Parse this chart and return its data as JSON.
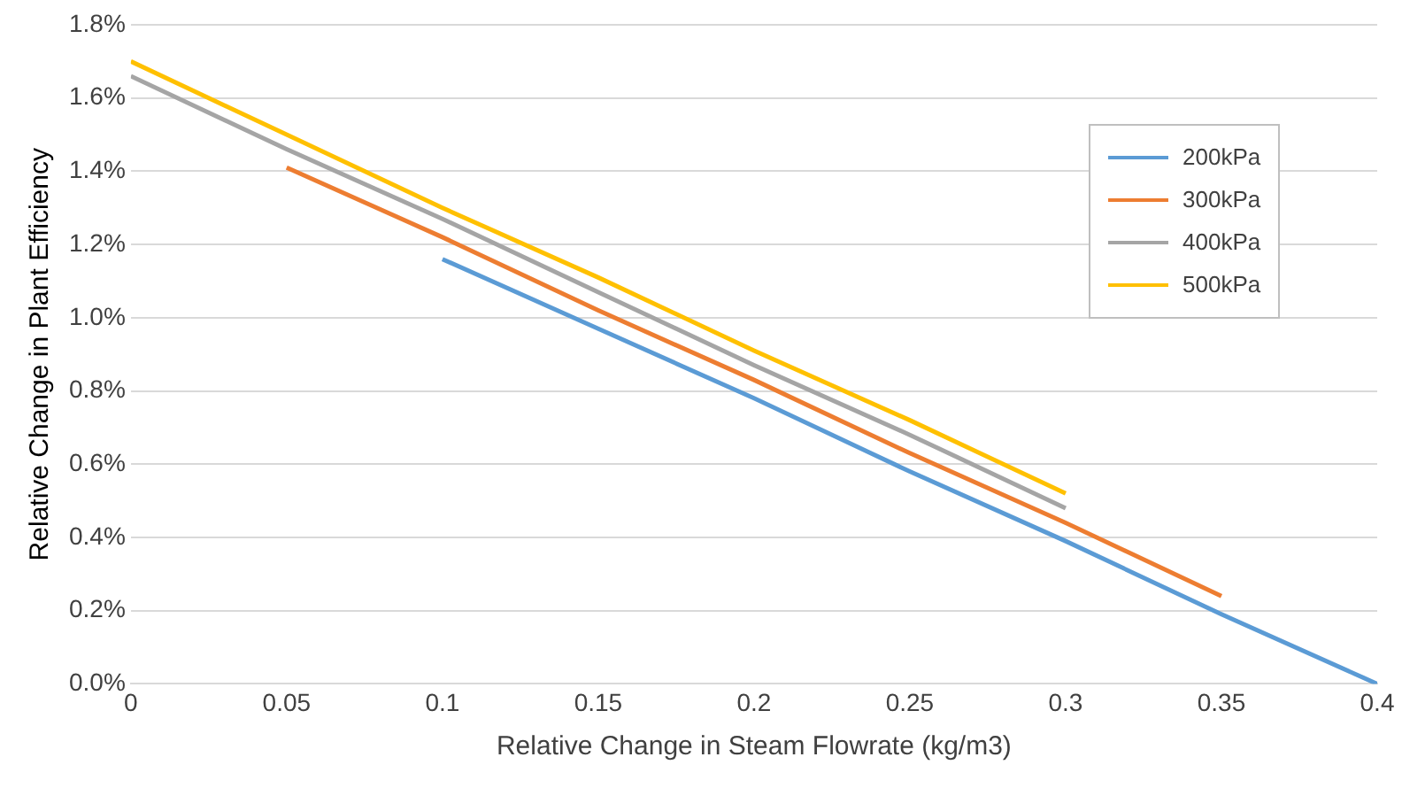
{
  "chart_data": {
    "type": "line",
    "xlabel": "Relative Change in Steam Flowrate (kg/m3)",
    "ylabel": "Relative Change in Plant Efficiency",
    "xlim": [
      0,
      0.4
    ],
    "xticks": [
      0,
      0.05,
      0.1,
      0.15,
      0.2,
      0.25,
      0.3,
      0.35,
      0.4
    ],
    "ylim": [
      0,
      1.8
    ],
    "yticks": [
      {
        "value": 0,
        "label": "0.0%"
      },
      {
        "value": 0.2,
        "label": "0.2%"
      },
      {
        "value": 0.4,
        "label": "0.4%"
      },
      {
        "value": 0.6,
        "label": "0.6%"
      },
      {
        "value": 0.8,
        "label": "0.8%"
      },
      {
        "value": 1.0,
        "label": "1.0%"
      },
      {
        "value": 1.2,
        "label": "1.2%"
      },
      {
        "value": 1.4,
        "label": "1.4%"
      },
      {
        "value": 1.6,
        "label": "1.6%"
      },
      {
        "value": 1.8,
        "label": "1.8%"
      }
    ],
    "grid": "y",
    "legend": "right",
    "marker": "none",
    "line_style": "solid",
    "series": [
      {
        "name": "200kPa",
        "color": "#5b9bd5",
        "x": [
          0.1,
          0.15,
          0.2,
          0.25,
          0.3,
          0.35,
          0.4
        ],
        "values": [
          1.16,
          0.97,
          0.78,
          0.58,
          0.39,
          0.19,
          0
        ]
      },
      {
        "name": "300kPa",
        "color": "#ed7d31",
        "x": [
          0.05,
          0.1,
          0.15,
          0.2,
          0.25,
          0.3,
          0.35
        ],
        "values": [
          1.41,
          1.22,
          1.02,
          0.83,
          0.63,
          0.44,
          0.24
        ]
      },
      {
        "name": "400kPa",
        "color": "#a5a5a5",
        "x": [
          0,
          0.05,
          0.1,
          0.15,
          0.2,
          0.25,
          0.3
        ],
        "values": [
          1.66,
          1.46,
          1.27,
          1.07,
          0.87,
          0.68,
          0.48
        ]
      },
      {
        "name": "500kPa",
        "color": "#ffc000",
        "x": [
          0,
          0.05,
          0.1,
          0.15,
          0.2,
          0.25,
          0.3
        ],
        "values": [
          1.7,
          1.5,
          1.3,
          1.11,
          0.91,
          0.72,
          0.52
        ]
      }
    ]
  }
}
